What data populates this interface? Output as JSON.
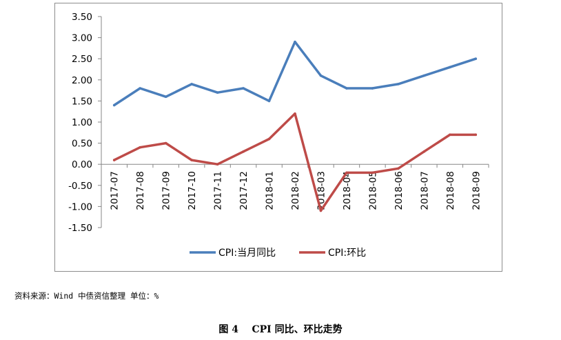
{
  "chart_data": {
    "type": "line",
    "categories": [
      "2017-07",
      "2017-08",
      "2017-09",
      "2017-10",
      "2017-11",
      "2017-12",
      "2018-01",
      "2018-02",
      "2018-03",
      "2018-04",
      "2018-05",
      "2018-06",
      "2018-07",
      "2018-08",
      "2018-09"
    ],
    "series": [
      {
        "name": "CPI:当月同比",
        "color": "#4a7ebb",
        "values": [
          1.4,
          1.8,
          1.6,
          1.9,
          1.7,
          1.8,
          1.5,
          2.9,
          2.1,
          1.8,
          1.8,
          1.9,
          2.1,
          2.3,
          2.5
        ]
      },
      {
        "name": "CPI:环比",
        "color": "#be4b48",
        "values": [
          0.1,
          0.4,
          0.5,
          0.1,
          0.0,
          0.3,
          0.6,
          1.2,
          -1.1,
          -0.2,
          -0.2,
          -0.1,
          0.3,
          0.7,
          0.7
        ]
      }
    ],
    "yticks": [
      "3.50",
      "3.00",
      "2.50",
      "2.00",
      "1.50",
      "1.00",
      "0.50",
      "0.00",
      "-0.50",
      "-1.00",
      "-1.50"
    ],
    "ylim": [
      -1.5,
      3.5
    ],
    "grid": false,
    "legend_position": "bottom",
    "title": "",
    "xlabel": "",
    "ylabel": ""
  },
  "source_note": "资料来源：Wind 中债资信整理 单位：%",
  "caption": "图 4    CPI 同比、环比走势"
}
